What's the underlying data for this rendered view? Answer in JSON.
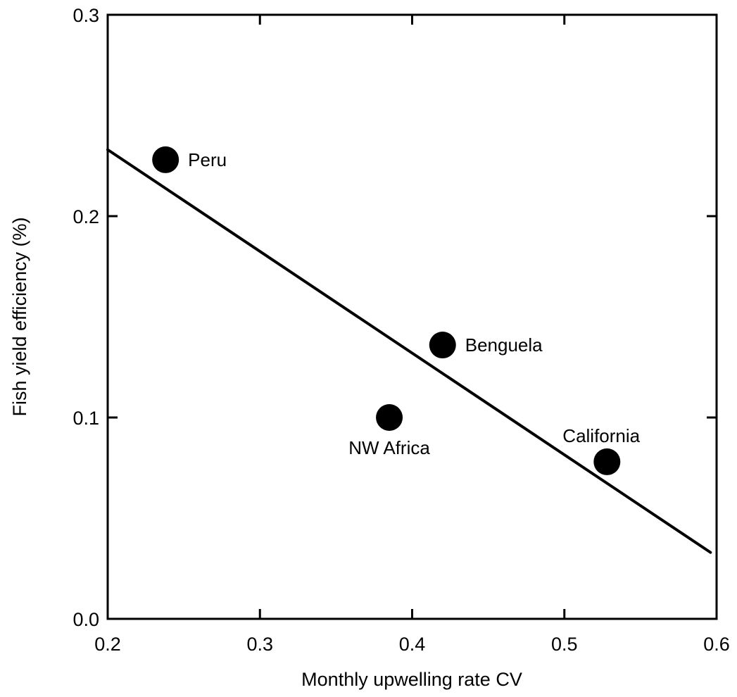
{
  "chart_data": {
    "type": "scatter",
    "title": "",
    "xlabel": "Monthly upwelling rate CV",
    "ylabel": "Fish yield efficiency (%)",
    "xlim": [
      0.2,
      0.6
    ],
    "ylim": [
      0.0,
      0.3
    ],
    "x_ticks": [
      0.2,
      0.3,
      0.4,
      0.5,
      0.6
    ],
    "y_ticks": [
      0.0,
      0.1,
      0.2,
      0.3
    ],
    "x_tick_labels": [
      "0.2",
      "0.3",
      "0.4",
      "0.5",
      "0.6"
    ],
    "y_tick_labels": [
      "0.0",
      "0.1",
      "0.2",
      "0.3"
    ],
    "grid": false,
    "points": [
      {
        "label": "Peru",
        "x": 0.238,
        "y": 0.228,
        "label_position": "right"
      },
      {
        "label": "Benguela",
        "x": 0.42,
        "y": 0.136,
        "label_position": "right"
      },
      {
        "label": "NW Africa",
        "x": 0.385,
        "y": 0.1,
        "label_position": "below"
      },
      {
        "label": "California",
        "x": 0.528,
        "y": 0.078,
        "label_position": "above-left"
      }
    ],
    "fit_line": {
      "x": [
        0.2,
        0.596
      ],
      "y": [
        0.233,
        0.033
      ]
    },
    "colors": {
      "points": "#000000",
      "line": "#000000",
      "axes": "#000000"
    }
  }
}
